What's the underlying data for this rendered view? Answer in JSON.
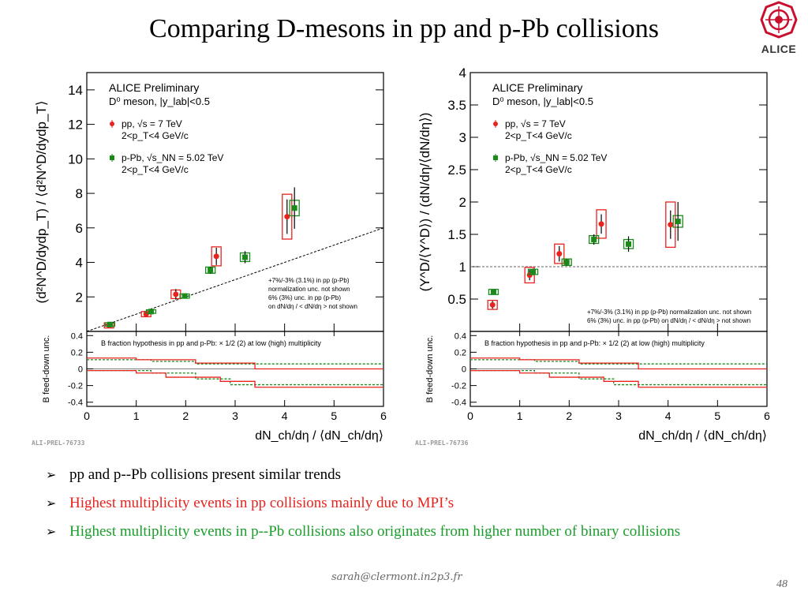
{
  "slide": {
    "title": "Comparing D-mesons in pp and p-Pb collisions",
    "logo_text": "ALICE",
    "footer_email": "sarah@clermont.in2p3.fr",
    "page_number": "48"
  },
  "bullets": [
    {
      "text": "pp and p--Pb collisions present similar trends",
      "color": "#000000"
    },
    {
      "text": "Highest multiplicity events in pp collisions mainly due to MPI’s",
      "color": "#e8231e"
    },
    {
      "text": "Highest multiplicity events in p--Pb collisions also originates from higher number of binary collisions",
      "color": "#1a9e2a"
    }
  ],
  "colors": {
    "pp": "#e8231e",
    "ppb": "#1a8a1a",
    "axis": "#000000"
  },
  "chart_data": [
    {
      "type": "scatter",
      "id": "fig1",
      "corner_label": "ALI-PREL-76733",
      "legend_title": "ALICE Preliminary",
      "legend_subtitle": "D⁰ meson, |y_lab|<0.5",
      "legend_placement": "top-left",
      "ylabel": "(d²N^D/dydp_T) / ⟨d²N^D/dydp_T⟩",
      "xlabel": "dN_ch/dη / ⟨dN_ch/dη⟩",
      "xlim": [
        0,
        6
      ],
      "ylim": [
        0,
        15
      ],
      "yticks": [
        "2",
        "4",
        "6",
        "8",
        "10",
        "12",
        "14"
      ],
      "xticks": [
        "0",
        "1",
        "2",
        "3",
        "4",
        "5",
        "6"
      ],
      "diagonal_reference": true,
      "norm_notes": [
        "+7%/-3% (3.1%) in pp (p-Pb)",
        "normalization unc. not shown",
        "6% (3%) unc. in pp (p-Pb)",
        "on dN/dη / < dN/dη > not shown"
      ],
      "series": [
        {
          "name": "pp, √s = 7 TeV",
          "sub": "2<p_T<4 GeV/c",
          "x": [
            0.45,
            1.2,
            1.8,
            2.62,
            4.05
          ],
          "y": [
            0.35,
            1.0,
            2.15,
            4.35,
            6.65
          ],
          "err": [
            0.1,
            0.1,
            0.3,
            0.5,
            1.0
          ],
          "syst": [
            0.15,
            0.15,
            0.25,
            0.55,
            1.3
          ]
        },
        {
          "name": "p-Pb, √s_NN = 5.02 TeV",
          "sub": "2<p_T<4 GeV/c",
          "x": [
            0.47,
            1.3,
            1.98,
            2.5,
            3.2,
            4.2
          ],
          "y": [
            0.4,
            1.15,
            2.05,
            3.55,
            4.3,
            7.15
          ],
          "err": [
            0.05,
            0.1,
            0.12,
            0.2,
            0.35,
            1.2
          ],
          "syst": [
            0.1,
            0.1,
            0.12,
            0.18,
            0.25,
            0.45
          ]
        }
      ],
      "ratio_panel": {
        "ylabel": "B feed-down unc.",
        "ylim": [
          -0.45,
          0.45
        ],
        "yticks": [
          "0.4",
          "0.2",
          "0",
          "-0.2",
          "-0.4"
        ],
        "note": "B fraction hypothesis in pp and p-Pb: × 1/2 (2) at low (high) multiplicity",
        "pp_upper": [
          [
            0,
            0.13
          ],
          [
            1,
            0.11
          ],
          [
            2.2,
            0.07
          ],
          [
            3.4,
            0.0
          ],
          [
            6,
            0.0
          ]
        ],
        "pp_lower": [
          [
            0,
            -0.02
          ],
          [
            1,
            -0.05
          ],
          [
            1.6,
            -0.1
          ],
          [
            2.7,
            -0.15
          ],
          [
            3.4,
            -0.22
          ],
          [
            6,
            -0.22
          ]
        ],
        "ppb_upper": [
          [
            0,
            0.11
          ],
          [
            1.3,
            0.09
          ],
          [
            2.2,
            0.06
          ],
          [
            6,
            0.06
          ]
        ],
        "ppb_lower": [
          [
            0,
            -0.02
          ],
          [
            1.3,
            -0.05
          ],
          [
            2.2,
            -0.12
          ],
          [
            2.9,
            -0.19
          ],
          [
            6,
            -0.19
          ]
        ]
      }
    },
    {
      "type": "scatter",
      "id": "fig2",
      "corner_label": "ALI-PREL-76736",
      "legend_title": "ALICE Preliminary",
      "legend_subtitle": "D⁰ meson, |y_lab|<0.5",
      "legend_placement": "top-left",
      "ylabel": "(Y^D/⟨Y^D⟩) / (dN/dη/⟨dN/dη⟩)",
      "xlabel": "dN_ch/dη / ⟨dN_ch/dη⟩",
      "xlim": [
        0,
        6
      ],
      "ylim": [
        0,
        4
      ],
      "yticks": [
        "0.5",
        "1",
        "1.5",
        "2",
        "2.5",
        "3",
        "3.5",
        "4"
      ],
      "xticks": [
        "0",
        "1",
        "2",
        "3",
        "4",
        "5",
        "6"
      ],
      "horizontal_reference": 1,
      "norm_notes": [
        "+7%/-3% (3.1%) in pp (p-Pb) normalization unc. not shown",
        "6% (3%) unc. in pp (p-Pb) on dN/dη / < dN/dη > not shown"
      ],
      "series": [
        {
          "name": "pp, √s = 7 TeV",
          "sub": "2<p_T<4 GeV/c",
          "x": [
            0.45,
            1.2,
            1.8,
            2.65,
            4.05
          ],
          "y": [
            0.41,
            0.87,
            1.2,
            1.66,
            1.65
          ],
          "err": [
            0.06,
            0.08,
            0.12,
            0.15,
            0.22
          ],
          "syst": [
            0.07,
            0.12,
            0.15,
            0.22,
            0.35
          ]
        },
        {
          "name": "p-Pb, √s_NN = 5.02 TeV",
          "sub": "2<p_T<4 GeV/c",
          "x": [
            0.47,
            1.27,
            1.95,
            2.5,
            3.2,
            4.2
          ],
          "y": [
            0.61,
            0.92,
            1.07,
            1.42,
            1.35,
            1.7
          ],
          "err": [
            0.03,
            0.05,
            0.05,
            0.08,
            0.12,
            0.3
          ],
          "syst": [
            0.04,
            0.04,
            0.05,
            0.06,
            0.07,
            0.09
          ]
        }
      ],
      "ratio_panel": {
        "ylabel": "B feed-down unc.",
        "ylim": [
          -0.45,
          0.45
        ],
        "yticks": [
          "0.4",
          "0.2",
          "0",
          "-0.2",
          "-0.4"
        ],
        "note": "B fraction hypothesis in pp and p-Pb: × 1/2 (2) at low (high) multiplicity",
        "pp_upper": [
          [
            0,
            0.13
          ],
          [
            1,
            0.11
          ],
          [
            2.2,
            0.07
          ],
          [
            3.4,
            0.0
          ],
          [
            6,
            0.0
          ]
        ],
        "pp_lower": [
          [
            0,
            -0.02
          ],
          [
            1,
            -0.05
          ],
          [
            1.6,
            -0.1
          ],
          [
            2.7,
            -0.15
          ],
          [
            3.4,
            -0.22
          ],
          [
            6,
            -0.22
          ]
        ],
        "ppb_upper": [
          [
            0,
            0.11
          ],
          [
            1.3,
            0.09
          ],
          [
            2.2,
            0.06
          ],
          [
            6,
            0.06
          ]
        ],
        "ppb_lower": [
          [
            0,
            -0.02
          ],
          [
            1.3,
            -0.05
          ],
          [
            2.2,
            -0.12
          ],
          [
            2.9,
            -0.19
          ],
          [
            6,
            -0.19
          ]
        ]
      }
    }
  ]
}
